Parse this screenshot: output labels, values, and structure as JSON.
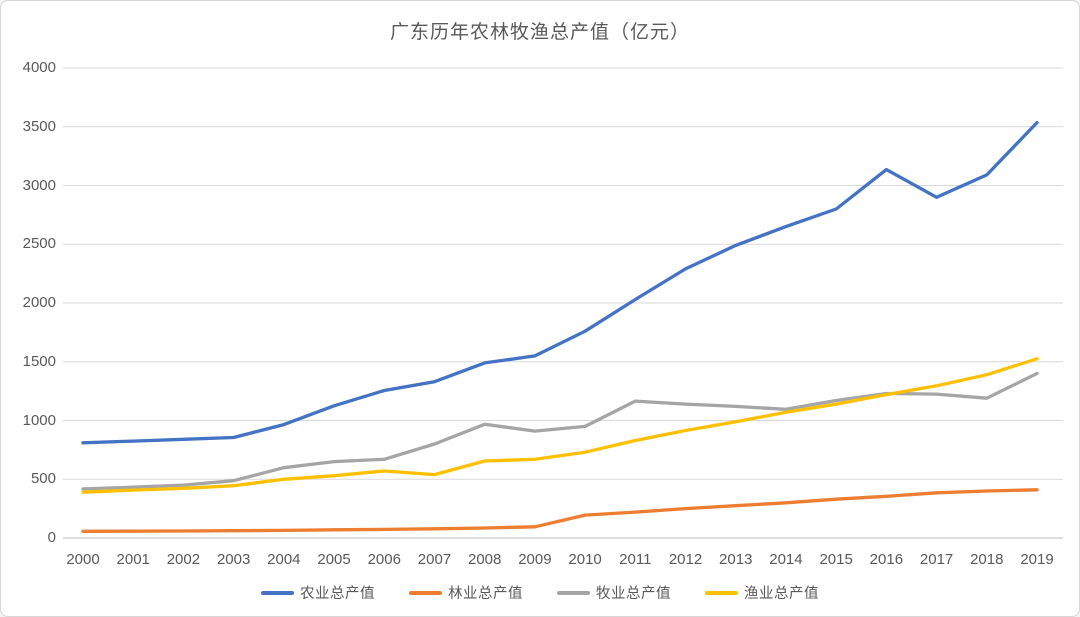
{
  "window": {
    "background": "#ffffff",
    "border_color": "#d7d7d7"
  },
  "colors": {
    "text": "#595959",
    "gridline": "#d9d9d9",
    "axis_line": "#bfbfbf"
  },
  "chart_data": {
    "type": "line",
    "title": "广东历年农林牧渔总产值（亿元）",
    "x": [
      2000,
      2001,
      2002,
      2003,
      2004,
      2005,
      2006,
      2007,
      2008,
      2009,
      2010,
      2011,
      2012,
      2013,
      2014,
      2015,
      2016,
      2017,
      2018,
      2019
    ],
    "series": [
      {
        "key": "agriculture",
        "name": "农业总产值",
        "color": "#4472C4",
        "values": [
          810,
          825,
          840,
          855,
          965,
          1125,
          1255,
          1330,
          1490,
          1550,
          1760,
          2030,
          2290,
          2490,
          2650,
          2800,
          3135,
          2900,
          3090,
          3535
        ]
      },
      {
        "key": "forestry",
        "name": "林业总产值",
        "color": "#ED7D31",
        "values": [
          57,
          58,
          60,
          62,
          65,
          70,
          73,
          78,
          85,
          95,
          195,
          220,
          250,
          275,
          300,
          330,
          355,
          385,
          400,
          410
        ]
      },
      {
        "key": "animal-husbandry",
        "name": "牧业总产值",
        "color": "#A5A5A5",
        "values": [
          418,
          432,
          450,
          488,
          598,
          650,
          670,
          800,
          968,
          910,
          950,
          1165,
          1140,
          1120,
          1095,
          1170,
          1230,
          1225,
          1190,
          1400
        ]
      },
      {
        "key": "fishery",
        "name": "渔业总产值",
        "color": "#FFC000",
        "values": [
          390,
          408,
          422,
          445,
          500,
          530,
          570,
          540,
          655,
          670,
          730,
          830,
          915,
          990,
          1070,
          1140,
          1220,
          1295,
          1390,
          1525
        ]
      }
    ],
    "ylim": [
      0,
      4000
    ],
    "yticks": [
      0,
      500,
      1000,
      1500,
      2000,
      2500,
      3000,
      3500,
      4000
    ],
    "grid": true,
    "legend_position": "bottom"
  }
}
